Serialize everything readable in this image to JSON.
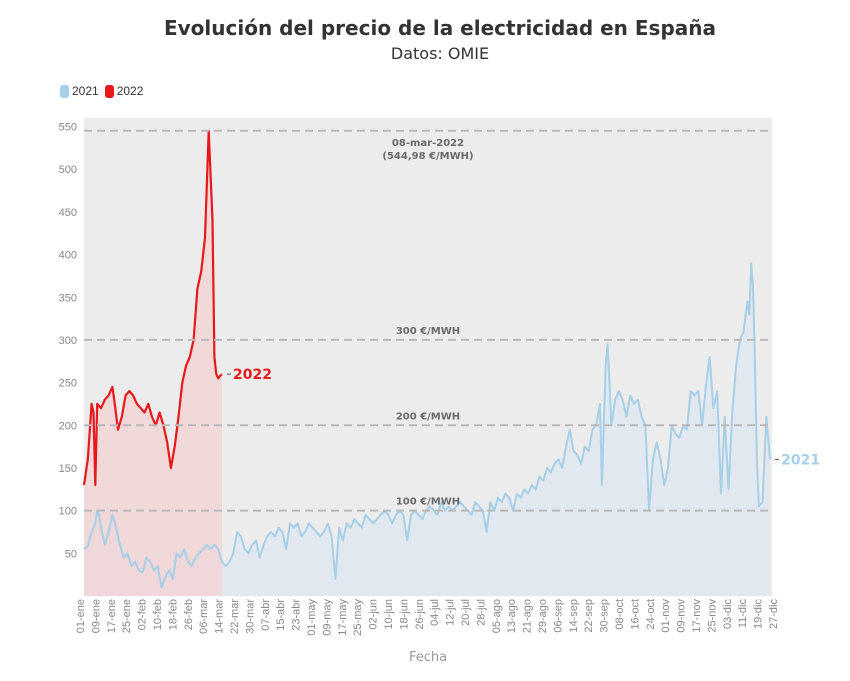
{
  "chart_data": {
    "type": "area",
    "title": "Evolución del precio de la electricidad en España",
    "subtitle": "Datos: OMIE",
    "xlabel": "Fecha",
    "ylabel": "",
    "ylim": [
      0,
      560
    ],
    "yticks": [
      50,
      100,
      150,
      200,
      250,
      300,
      350,
      400,
      450,
      500,
      550
    ],
    "xticks": [
      "01-ene",
      "09-ene",
      "17-ene",
      "25-ene",
      "02-feb",
      "10-feb",
      "18-feb",
      "26-feb",
      "06-mar",
      "14-mar",
      "22-mar",
      "30-mar",
      "07-abr",
      "15-abr",
      "23-abr",
      "01-may",
      "09-may",
      "17-may",
      "25-may",
      "02-jun",
      "10-jun",
      "18-jun",
      "26-jun",
      "04-jul",
      "12-jul",
      "20-jul",
      "28-jul",
      "05-ago",
      "13-ago",
      "21-ago",
      "29-ago",
      "06-sep",
      "14-sep",
      "22-sep",
      "30-sep",
      "08-oct",
      "16-oct",
      "24-oct",
      "01-nov",
      "09-nov",
      "17-nov",
      "25-nov",
      "03-dic",
      "11-dic",
      "19-dic",
      "27-dic"
    ],
    "grid": true,
    "legend_position": "top-left",
    "reference_lines": [
      {
        "value": 100,
        "label": "100 €/MWH"
      },
      {
        "value": 200,
        "label": "200 €/MWH"
      },
      {
        "value": 300,
        "label": "300 €/MWH"
      },
      {
        "value": 545,
        "label": "08-mar-2022",
        "sublabel": "(544,98 €/MWH)"
      }
    ],
    "series": [
      {
        "name": "2021",
        "color": "#a6cfe8",
        "end_label": "2021",
        "points": [
          [
            1,
            55
          ],
          [
            3,
            58
          ],
          [
            5,
            75
          ],
          [
            7,
            85
          ],
          [
            8,
            100
          ],
          [
            9,
            95
          ],
          [
            10,
            80
          ],
          [
            12,
            60
          ],
          [
            14,
            75
          ],
          [
            16,
            95
          ],
          [
            18,
            80
          ],
          [
            20,
            60
          ],
          [
            22,
            45
          ],
          [
            24,
            50
          ],
          [
            26,
            35
          ],
          [
            28,
            40
          ],
          [
            30,
            30
          ],
          [
            32,
            28
          ],
          [
            34,
            45
          ],
          [
            36,
            40
          ],
          [
            38,
            30
          ],
          [
            40,
            35
          ],
          [
            42,
            10
          ],
          [
            44,
            22
          ],
          [
            46,
            30
          ],
          [
            48,
            20
          ],
          [
            50,
            50
          ],
          [
            52,
            45
          ],
          [
            54,
            55
          ],
          [
            56,
            40
          ],
          [
            58,
            35
          ],
          [
            60,
            45
          ],
          [
            62,
            50
          ],
          [
            64,
            55
          ],
          [
            66,
            60
          ],
          [
            68,
            55
          ],
          [
            70,
            60
          ],
          [
            72,
            55
          ],
          [
            74,
            40
          ],
          [
            76,
            35
          ],
          [
            78,
            40
          ],
          [
            80,
            50
          ],
          [
            82,
            75
          ],
          [
            84,
            70
          ],
          [
            86,
            55
          ],
          [
            88,
            50
          ],
          [
            90,
            60
          ],
          [
            92,
            65
          ],
          [
            94,
            45
          ],
          [
            96,
            60
          ],
          [
            98,
            70
          ],
          [
            100,
            75
          ],
          [
            102,
            70
          ],
          [
            104,
            80
          ],
          [
            106,
            75
          ],
          [
            108,
            55
          ],
          [
            110,
            85
          ],
          [
            112,
            80
          ],
          [
            114,
            85
          ],
          [
            116,
            70
          ],
          [
            118,
            75
          ],
          [
            120,
            85
          ],
          [
            122,
            80
          ],
          [
            124,
            75
          ],
          [
            126,
            70
          ],
          [
            128,
            75
          ],
          [
            130,
            85
          ],
          [
            132,
            70
          ],
          [
            134,
            20
          ],
          [
            136,
            80
          ],
          [
            138,
            65
          ],
          [
            140,
            85
          ],
          [
            142,
            80
          ],
          [
            144,
            90
          ],
          [
            146,
            85
          ],
          [
            148,
            80
          ],
          [
            150,
            95
          ],
          [
            152,
            90
          ],
          [
            154,
            85
          ],
          [
            156,
            90
          ],
          [
            158,
            95
          ],
          [
            160,
            100
          ],
          [
            162,
            95
          ],
          [
            164,
            85
          ],
          [
            166,
            95
          ],
          [
            168,
            100
          ],
          [
            170,
            95
          ],
          [
            172,
            65
          ],
          [
            174,
            95
          ],
          [
            176,
            100
          ],
          [
            178,
            95
          ],
          [
            180,
            90
          ],
          [
            182,
            100
          ],
          [
            184,
            105
          ],
          [
            186,
            100
          ],
          [
            188,
            95
          ],
          [
            190,
            110
          ],
          [
            192,
            100
          ],
          [
            194,
            105
          ],
          [
            196,
            100
          ],
          [
            198,
            105
          ],
          [
            200,
            110
          ],
          [
            202,
            105
          ],
          [
            204,
            100
          ],
          [
            206,
            95
          ],
          [
            208,
            110
          ],
          [
            210,
            105
          ],
          [
            212,
            100
          ],
          [
            214,
            75
          ],
          [
            216,
            110
          ],
          [
            218,
            100
          ],
          [
            220,
            115
          ],
          [
            222,
            110
          ],
          [
            224,
            120
          ],
          [
            226,
            115
          ],
          [
            228,
            100
          ],
          [
            230,
            120
          ],
          [
            232,
            115
          ],
          [
            234,
            125
          ],
          [
            236,
            120
          ],
          [
            238,
            130
          ],
          [
            240,
            125
          ],
          [
            242,
            140
          ],
          [
            244,
            135
          ],
          [
            246,
            150
          ],
          [
            248,
            145
          ],
          [
            250,
            155
          ],
          [
            252,
            160
          ],
          [
            254,
            150
          ],
          [
            256,
            175
          ],
          [
            258,
            195
          ],
          [
            260,
            170
          ],
          [
            262,
            165
          ],
          [
            264,
            155
          ],
          [
            266,
            175
          ],
          [
            268,
            170
          ],
          [
            270,
            195
          ],
          [
            272,
            200
          ],
          [
            274,
            225
          ],
          [
            275,
            130
          ],
          [
            276,
            200
          ],
          [
            277,
            270
          ],
          [
            278,
            295
          ],
          [
            279,
            250
          ],
          [
            280,
            200
          ],
          [
            282,
            230
          ],
          [
            284,
            240
          ],
          [
            286,
            230
          ],
          [
            288,
            210
          ],
          [
            290,
            235
          ],
          [
            292,
            225
          ],
          [
            294,
            230
          ],
          [
            296,
            210
          ],
          [
            298,
            200
          ],
          [
            300,
            100
          ],
          [
            302,
            160
          ],
          [
            304,
            180
          ],
          [
            306,
            160
          ],
          [
            308,
            130
          ],
          [
            310,
            150
          ],
          [
            312,
            200
          ],
          [
            314,
            190
          ],
          [
            316,
            185
          ],
          [
            318,
            200
          ],
          [
            320,
            195
          ],
          [
            322,
            240
          ],
          [
            324,
            235
          ],
          [
            326,
            240
          ],
          [
            328,
            200
          ],
          [
            330,
            245
          ],
          [
            332,
            280
          ],
          [
            334,
            220
          ],
          [
            336,
            240
          ],
          [
            338,
            120
          ],
          [
            340,
            210
          ],
          [
            342,
            125
          ],
          [
            344,
            215
          ],
          [
            346,
            270
          ],
          [
            348,
            300
          ],
          [
            350,
            310
          ],
          [
            352,
            345
          ],
          [
            353,
            330
          ],
          [
            354,
            390
          ],
          [
            355,
            360
          ],
          [
            356,
            270
          ],
          [
            357,
            160
          ],
          [
            358,
            105
          ],
          [
            360,
            110
          ],
          [
            362,
            210
          ],
          [
            364,
            160
          ]
        ]
      },
      {
        "name": "2022",
        "color": "#e8191b",
        "end_label": "2022",
        "points": [
          [
            1,
            130
          ],
          [
            3,
            160
          ],
          [
            5,
            225
          ],
          [
            6,
            215
          ],
          [
            7,
            130
          ],
          [
            8,
            225
          ],
          [
            10,
            220
          ],
          [
            12,
            230
          ],
          [
            14,
            235
          ],
          [
            16,
            245
          ],
          [
            17,
            230
          ],
          [
            19,
            195
          ],
          [
            21,
            210
          ],
          [
            23,
            235
          ],
          [
            25,
            240
          ],
          [
            27,
            235
          ],
          [
            29,
            225
          ],
          [
            31,
            220
          ],
          [
            33,
            215
          ],
          [
            35,
            225
          ],
          [
            37,
            210
          ],
          [
            39,
            200
          ],
          [
            41,
            215
          ],
          [
            43,
            200
          ],
          [
            45,
            180
          ],
          [
            47,
            150
          ],
          [
            49,
            175
          ],
          [
            51,
            210
          ],
          [
            53,
            250
          ],
          [
            55,
            270
          ],
          [
            57,
            280
          ],
          [
            59,
            300
          ],
          [
            61,
            360
          ],
          [
            63,
            380
          ],
          [
            65,
            420
          ],
          [
            67,
            545
          ],
          [
            69,
            440
          ],
          [
            70,
            280
          ],
          [
            71,
            260
          ],
          [
            72,
            255
          ],
          [
            73,
            258
          ],
          [
            74,
            260
          ]
        ]
      }
    ]
  }
}
